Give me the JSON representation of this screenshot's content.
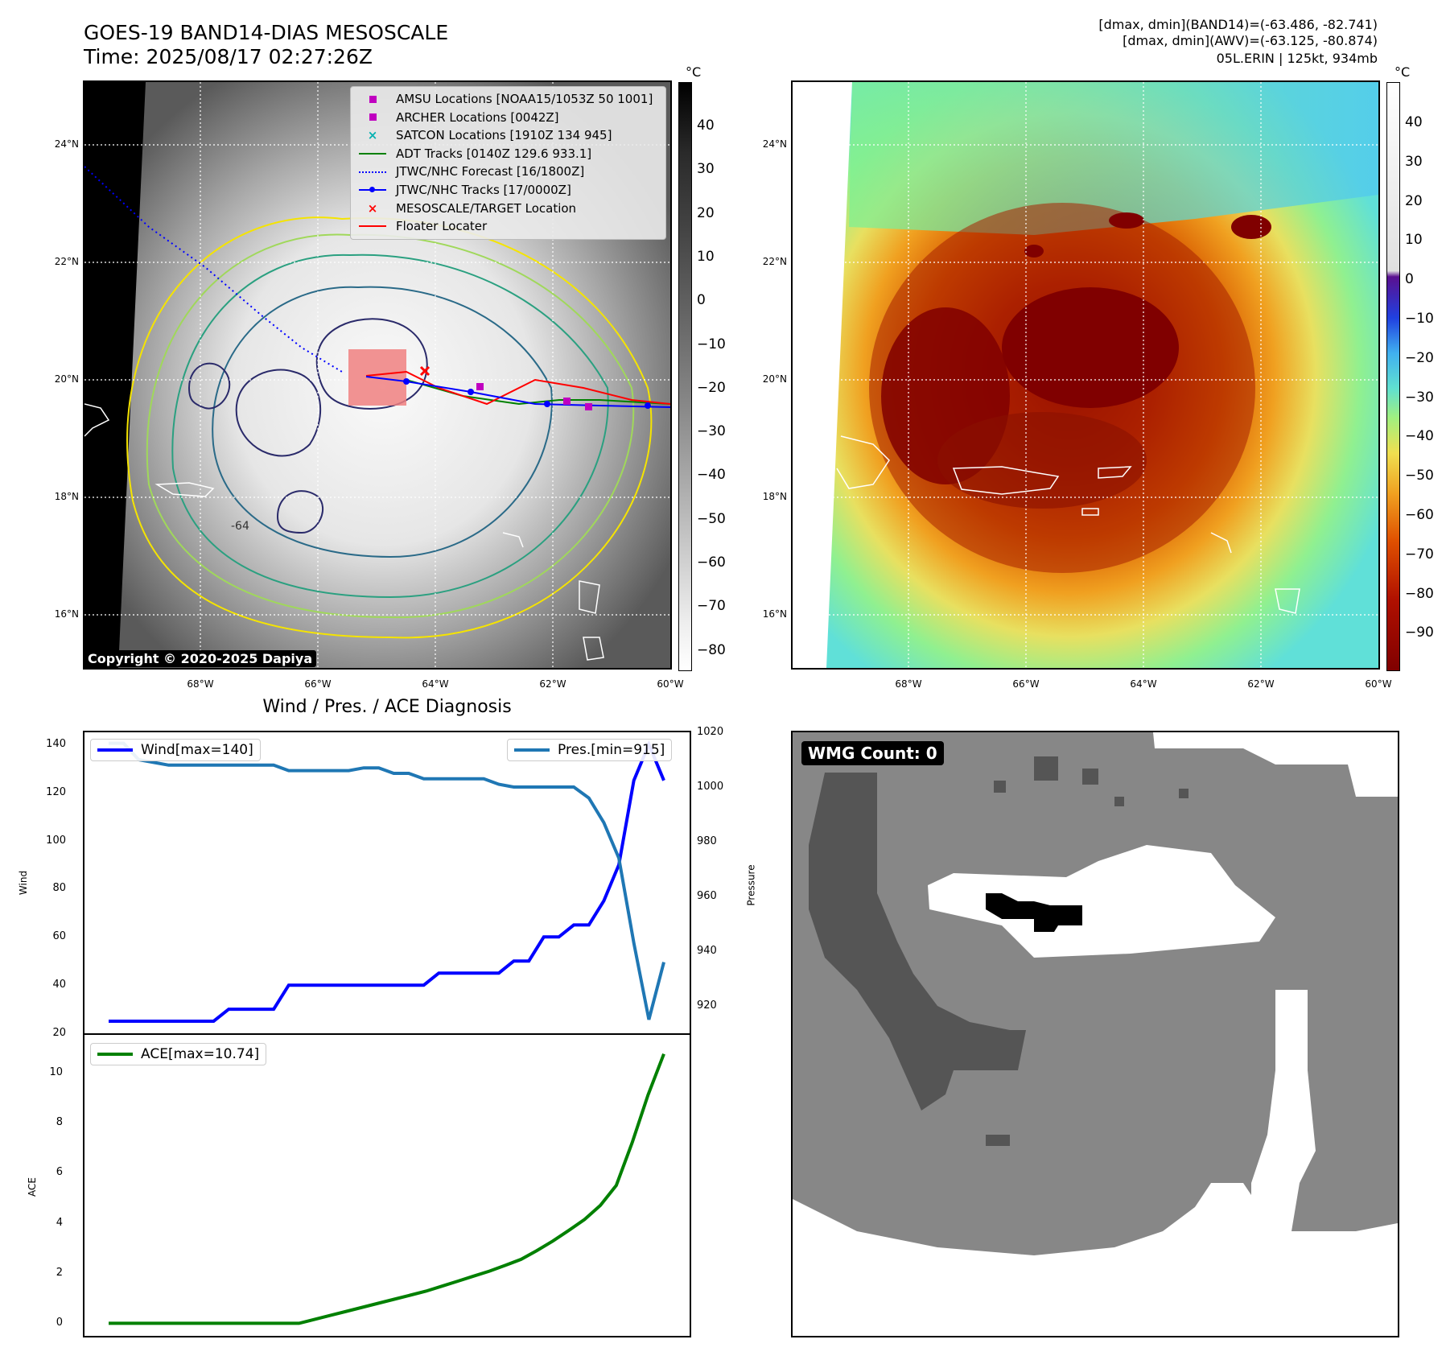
{
  "header": {
    "title_line1": "GOES-19 BAND14-DIAS MESOSCALE",
    "title_line2": "Time: 2025/08/17 02:27:26Z",
    "info_line1": "[dmax, dmin](BAND14)=(-63.486, -82.741)",
    "info_line2": "[dmax, dmin](AWV)=(-63.125, -80.874)",
    "info_line3": "05L.ERIN | 125kt, 934mb"
  },
  "map": {
    "lat_labels": [
      "24°N",
      "22°N",
      "20°N",
      "18°N",
      "16°N"
    ],
    "lon_labels": [
      "68°W",
      "66°W",
      "64°W",
      "62°W",
      "60°W"
    ],
    "copyright": "Copyright © 2020-2025 Dapiya",
    "contour_label": "-64",
    "legend": [
      {
        "label": "AMSU Locations [NOAA15/1053Z 50 1001]",
        "symbol": "square",
        "color": "#c000c0"
      },
      {
        "label": "ARCHER Locations [0042Z]",
        "symbol": "square",
        "color": "#c000c0"
      },
      {
        "label": "SATCON Locations [1910Z 134 945]",
        "symbol": "x",
        "color": "#00b0b0"
      },
      {
        "label": "ADT Tracks [0140Z 129.6 933.1]",
        "symbol": "line",
        "color": "#008000"
      },
      {
        "label": "JTWC/NHC Forecast [16/1800Z]",
        "symbol": "dotted",
        "color": "#0000ff"
      },
      {
        "label": "JTWC/NHC Tracks [17/0000Z]",
        "symbol": "line-dot",
        "color": "#0000ff"
      },
      {
        "label": "MESOSCALE/TARGET Location",
        "symbol": "x",
        "color": "#ff0000"
      },
      {
        "label": "Floater Locater",
        "symbol": "line",
        "color": "#ff0000"
      }
    ]
  },
  "colorbar_gray": {
    "unit": "°C",
    "ticks": [
      "40",
      "30",
      "20",
      "10",
      "0",
      "−10",
      "−20",
      "−30",
      "−40",
      "−50",
      "−60",
      "−70",
      "−80"
    ]
  },
  "colorbar_color": {
    "unit": "°C",
    "ticks": [
      "40",
      "30",
      "20",
      "10",
      "0",
      "−10",
      "−20",
      "−30",
      "−40",
      "−50",
      "−60",
      "−70",
      "−80",
      "−90"
    ]
  },
  "wmg": {
    "badge": "WMG Count: 0"
  },
  "chart_data": [
    {
      "type": "line",
      "title": "Wind / Pres. / ACE Diagnosis",
      "ylabel": "Wind",
      "y2label": "Pressure",
      "ylim": [
        20,
        145
      ],
      "y2lim": [
        910,
        1020
      ],
      "yticks": [
        "140",
        "120",
        "100",
        "80",
        "60",
        "40",
        "20"
      ],
      "y2ticks": [
        "1020",
        "1000",
        "980",
        "960",
        "940",
        "920"
      ],
      "grid": false,
      "series": [
        {
          "name": "Wind[max=140]",
          "color": "#0000ff",
          "values": [
            25,
            25,
            25,
            25,
            25,
            25,
            25,
            25,
            30,
            30,
            30,
            30,
            40,
            40,
            40,
            40,
            40,
            40,
            40,
            40,
            40,
            40,
            45,
            45,
            45,
            45,
            45,
            50,
            50,
            60,
            60,
            65,
            65,
            75,
            90,
            125,
            140,
            125
          ]
        },
        {
          "name": "Pres.[min=915]",
          "color": "#1f77b4",
          "values": [
            1016,
            1016,
            1010,
            1009,
            1008,
            1008,
            1008,
            1008,
            1008,
            1008,
            1008,
            1008,
            1006,
            1006,
            1006,
            1006,
            1006,
            1007,
            1007,
            1005,
            1005,
            1003,
            1003,
            1003,
            1003,
            1003,
            1001,
            1000,
            1000,
            1000,
            1000,
            1000,
            996,
            987,
            974,
            943,
            915,
            936
          ]
        }
      ]
    },
    {
      "type": "line",
      "ylabel": "ACE",
      "ylim": [
        -0.5,
        11.5
      ],
      "yticks": [
        "10",
        "8",
        "6",
        "4",
        "2",
        "0"
      ],
      "grid": false,
      "series": [
        {
          "name": "ACE[max=10.74]",
          "color": "#008000",
          "values": [
            0,
            0,
            0,
            0,
            0,
            0,
            0,
            0,
            0,
            0,
            0,
            0,
            0,
            0.16,
            0.32,
            0.48,
            0.64,
            0.8,
            0.96,
            1.12,
            1.28,
            1.48,
            1.68,
            1.88,
            2.08,
            2.31,
            2.55,
            2.9,
            3.28,
            3.7,
            4.14,
            4.7,
            5.5,
            7.2,
            9.1,
            10.74
          ]
        }
      ]
    }
  ]
}
